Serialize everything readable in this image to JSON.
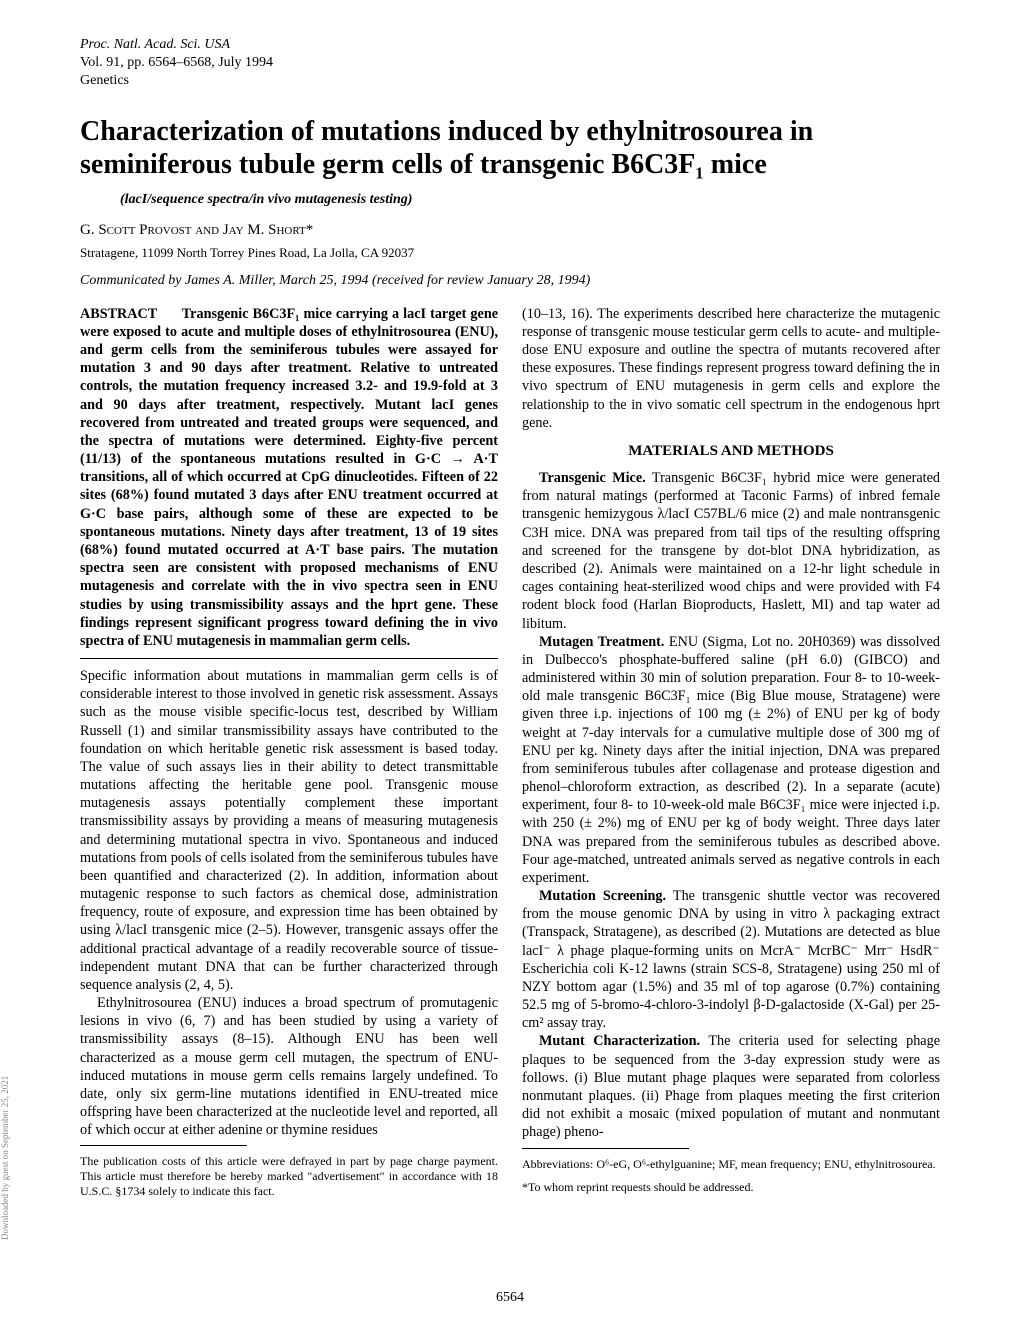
{
  "header": {
    "line1": "Proc. Natl. Acad. Sci. USA",
    "line2": "Vol. 91, pp. 6564–6568, July 1994",
    "line3": "Genetics"
  },
  "title": "Characterization of mutations induced by ethylnitrosourea in seminiferous tubule germ cells of transgenic B6C3F₁ mice",
  "subtitle": "(lacI/sequence spectra/in vivo mutagenesis testing)",
  "authors": "G. Scott Provost and Jay M. Short*",
  "affiliation": "Stratagene, 11099 North Torrey Pines Road, La Jolla, CA 92037",
  "communicated": "Communicated by James A. Miller, March 25, 1994 (received for review January 28, 1994)",
  "abstract_label": "ABSTRACT",
  "abstract_body": "Transgenic B6C3F₁ mice carrying a lacI target gene were exposed to acute and multiple doses of ethylnitrosourea (ENU), and germ cells from the seminiferous tubules were assayed for mutation 3 and 90 days after treatment. Relative to untreated controls, the mutation frequency increased 3.2- and 19.9-fold at 3 and 90 days after treatment, respectively. Mutant lacI genes recovered from untreated and treated groups were sequenced, and the spectra of mutations were determined. Eighty-five percent (11/13) of the spontaneous mutations resulted in G·C → A·T transitions, all of which occurred at CpG dinucleotides. Fifteen of 22 sites (68%) found mutated 3 days after ENU treatment occurred at G·C base pairs, although some of these are expected to be spontaneous mutations. Ninety days after treatment, 13 of 19 sites (68%) found mutated occurred at A·T base pairs. The mutation spectra seen are consistent with proposed mechanisms of ENU mutagenesis and correlate with the in vivo spectra seen in ENU studies by using transmissibility assays and the hprt gene. These findings represent significant progress toward defining the in vivo spectra of ENU mutagenesis in mammalian germ cells.",
  "intro_p1": "Specific information about mutations in mammalian germ cells is of considerable interest to those involved in genetic risk assessment. Assays such as the mouse visible specific-locus test, described by William Russell (1) and similar transmissibility assays have contributed to the foundation on which heritable genetic risk assessment is based today. The value of such assays lies in their ability to detect transmittable mutations affecting the heritable gene pool. Transgenic mouse mutagenesis assays potentially complement these important transmissibility assays by providing a means of measuring mutagenesis and determining mutational spectra in vivo. Spontaneous and induced mutations from pools of cells isolated from the seminiferous tubules have been quantified and characterized (2). In addition, information about mutagenic response to such factors as chemical dose, administration frequency, route of exposure, and expression time has been obtained by using λ/lacI transgenic mice (2–5). However, transgenic assays offer the additional practical advantage of a readily recoverable source of tissue-independent mutant DNA that can be further characterized through sequence analysis (2, 4, 5).",
  "intro_p2": "Ethylnitrosourea (ENU) induces a broad spectrum of promutagenic lesions in vivo (6, 7) and has been studied by using a variety of transmissibility assays (8–15). Although ENU has been well characterized as a mouse germ cell mutagen, the spectrum of ENU-induced mutations in mouse germ cells remains largely undefined. To date, only six germ-line mutations identified in ENU-treated mice offspring have been characterized at the nucleotide level and reported, all of which occur at either adenine or thymine residues",
  "col2_intro": "(10–13, 16). The experiments described here characterize the mutagenic response of transgenic mouse testicular germ cells to acute- and multiple-dose ENU exposure and outline the spectra of mutants recovered after these exposures. These findings represent progress toward defining the in vivo spectrum of ENU mutagenesis in germ cells and explore the relationship to the in vivo somatic cell spectrum in the endogenous hprt gene.",
  "mm_head": "MATERIALS AND METHODS",
  "mm_p1_label": "Transgenic Mice.",
  "mm_p1": " Transgenic B6C3F₁ hybrid mice were generated from natural matings (performed at Taconic Farms) of inbred female transgenic hemizygous λ/lacI C57BL/6 mice (2) and male nontransgenic C3H mice. DNA was prepared from tail tips of the resulting offspring and screened for the transgene by dot-blot DNA hybridization, as described (2). Animals were maintained on a 12-hr light schedule in cages containing heat-sterilized wood chips and were provided with F4 rodent block food (Harlan Bioproducts, Haslett, MI) and tap water ad libitum.",
  "mm_p2_label": "Mutagen Treatment.",
  "mm_p2": " ENU (Sigma, Lot no. 20H0369) was dissolved in Dulbecco's phosphate-buffered saline (pH 6.0) (GIBCO) and administered within 30 min of solution preparation. Four 8- to 10-week-old male transgenic B6C3F₁ mice (Big Blue mouse, Stratagene) were given three i.p. injections of 100 mg (± 2%) of ENU per kg of body weight at 7-day intervals for a cumulative multiple dose of 300 mg of ENU per kg. Ninety days after the initial injection, DNA was prepared from seminiferous tubules after collagenase and protease digestion and phenol–chloroform extraction, as described (2). In a separate (acute) experiment, four 8- to 10-week-old male B6C3F₁ mice were injected i.p. with 250 (± 2%) mg of ENU per kg of body weight. Three days later DNA was prepared from the seminiferous tubules as described above. Four age-matched, untreated animals served as negative controls in each experiment.",
  "mm_p3_label": "Mutation Screening.",
  "mm_p3": " The transgenic shuttle vector was recovered from the mouse genomic DNA by using in vitro λ packaging extract (Transpack, Stratagene), as described (2). Mutations are detected as blue lacI⁻ λ phage plaque-forming units on McrA⁻ McrBC⁻ Mrr⁻ HsdR⁻ Escherichia coli K-12 lawns (strain SCS-8, Stratagene) using 250 ml of NZY bottom agar (1.5%) and 35 ml of top agarose (0.7%) containing 52.5 mg of 5-bromo-4-chloro-3-indolyl β-D-galactoside (X-Gal) per 25-cm² assay tray.",
  "mm_p4_label": "Mutant Characterization.",
  "mm_p4": " The criteria used for selecting phage plaques to be sequenced from the 3-day expression study were as follows. (i) Blue mutant phage plaques were separated from colorless nonmutant plaques. (ii) Phage from plaques meeting the first criterion did not exhibit a mosaic (mixed population of mutant and nonmutant phage) pheno-",
  "footnote_left": "The publication costs of this article were defrayed in part by page charge payment. This article must therefore be hereby marked \"advertisement\" in accordance with 18 U.S.C. §1734 solely to indicate this fact.",
  "footnote_right_1": "Abbreviations: O⁶-eG, O⁶-ethylguanine; MF, mean frequency; ENU, ethylnitrosourea.",
  "footnote_right_2": "*To whom reprint requests should be addressed.",
  "page_number": "6564",
  "side_note": "Downloaded by guest on September 25, 2021"
}
